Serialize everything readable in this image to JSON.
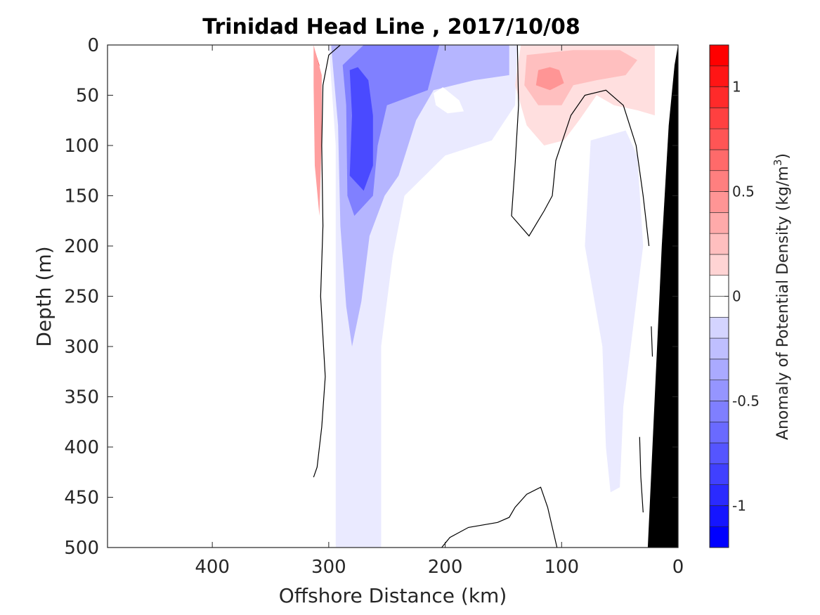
{
  "chart_data": {
    "type": "heatmap",
    "title": "Trinidad Head Line , 2017/10/08",
    "xlabel": "Offshore Distance (km)",
    "ylabel": "Depth (m)",
    "colorbar_label": "Anomaly of Potential Density (kg/m",
    "colorbar_label_superscript": "3",
    "colorbar_label_suffix": ")",
    "x_direction": "reversed",
    "y_direction": "reversed",
    "xlim": [
      0,
      490
    ],
    "ylim": [
      0,
      500
    ],
    "clim": [
      -1.2,
      1.2
    ],
    "contour_levels": [
      -1.2,
      -1.1,
      -1.0,
      -0.9,
      -0.8,
      -0.7,
      -0.6,
      -0.5,
      -0.4,
      -0.3,
      -0.2,
      -0.1,
      0,
      0.1,
      0.2,
      0.3,
      0.4,
      0.5,
      0.6,
      0.7,
      0.8,
      0.9,
      1.0,
      1.1,
      1.2
    ],
    "x_ticks": [
      {
        "value": 400,
        "label": "400"
      },
      {
        "value": 300,
        "label": "300"
      },
      {
        "value": 200,
        "label": "200"
      },
      {
        "value": 100,
        "label": "100"
      },
      {
        "value": 0,
        "label": "0"
      }
    ],
    "y_ticks": [
      {
        "value": 0,
        "label": "0"
      },
      {
        "value": 50,
        "label": "50"
      },
      {
        "value": 100,
        "label": "100"
      },
      {
        "value": 150,
        "label": "150"
      },
      {
        "value": 200,
        "label": "200"
      },
      {
        "value": 250,
        "label": "250"
      },
      {
        "value": 300,
        "label": "300"
      },
      {
        "value": 350,
        "label": "350"
      },
      {
        "value": 400,
        "label": "400"
      },
      {
        "value": 450,
        "label": "450"
      },
      {
        "value": 500,
        "label": "500"
      }
    ],
    "colorbar_ticks": [
      {
        "value": 1,
        "label": "1"
      },
      {
        "value": 0.5,
        "label": "0.5"
      },
      {
        "value": 0,
        "label": "0"
      },
      {
        "value": -0.5,
        "label": "-0.5"
      },
      {
        "value": -1,
        "label": "-1"
      }
    ],
    "colors": {
      "negative_max": "#0000ff",
      "positive_max": "#ff0000",
      "zero": "#ffffff",
      "bathymetry": "#000000",
      "zero_contour": "#000000"
    },
    "features": [
      {
        "name": "red-core-west",
        "level": 1.0,
        "points": [
          [
            312,
            5
          ],
          [
            308,
            20
          ],
          [
            308,
            45
          ],
          [
            310,
            60
          ],
          [
            312,
            35
          ]
        ]
      },
      {
        "name": "red-band-west",
        "level": 0.45,
        "points": [
          [
            313,
            0
          ],
          [
            306,
            30
          ],
          [
            306,
            90
          ],
          [
            308,
            170
          ],
          [
            312,
            120
          ],
          [
            313,
            40
          ]
        ]
      },
      {
        "name": "blue-outer",
        "level": -0.1,
        "points": [
          [
            300,
            0
          ],
          [
            294,
            100
          ],
          [
            294,
            300
          ],
          [
            294,
            500
          ],
          [
            255,
            500
          ],
          [
            255,
            300
          ],
          [
            245,
            210
          ],
          [
            235,
            150
          ],
          [
            200,
            110
          ],
          [
            160,
            95
          ],
          [
            140,
            60
          ],
          [
            138,
            0
          ]
        ]
      },
      {
        "name": "blue-mid",
        "level": -0.35,
        "points": [
          [
            298,
            0
          ],
          [
            292,
            80
          ],
          [
            290,
            180
          ],
          [
            285,
            260
          ],
          [
            280,
            300
          ],
          [
            272,
            255
          ],
          [
            265,
            190
          ],
          [
            252,
            150
          ],
          [
            240,
            130
          ],
          [
            225,
            75
          ],
          [
            210,
            45
          ],
          [
            175,
            35
          ],
          [
            145,
            30
          ],
          [
            145,
            0
          ]
        ]
      },
      {
        "name": "blue-inner",
        "level": -0.6,
        "points": [
          [
            288,
            20
          ],
          [
            285,
            60
          ],
          [
            284,
            150
          ],
          [
            278,
            170
          ],
          [
            262,
            150
          ],
          [
            258,
            100
          ],
          [
            250,
            60
          ],
          [
            215,
            45
          ],
          [
            205,
            0
          ],
          [
            270,
            0
          ]
        ]
      },
      {
        "name": "blue-core",
        "level": -0.85,
        "points": [
          [
            282,
            25
          ],
          [
            280,
            70
          ],
          [
            282,
            130
          ],
          [
            270,
            145
          ],
          [
            262,
            120
          ],
          [
            262,
            70
          ],
          [
            266,
            35
          ],
          [
            275,
            22
          ]
        ]
      },
      {
        "name": "white-gap",
        "level": 0,
        "points": [
          [
            202,
            42
          ],
          [
            188,
            55
          ],
          [
            184,
            66
          ],
          [
            198,
            68
          ],
          [
            208,
            60
          ],
          [
            210,
            48
          ]
        ]
      },
      {
        "name": "blue-nearshore",
        "level": -0.1,
        "points": [
          [
            60,
            90
          ],
          [
            75,
            95
          ],
          [
            80,
            200
          ],
          [
            65,
            300
          ],
          [
            62,
            400
          ],
          [
            58,
            445
          ],
          [
            50,
            440
          ],
          [
            47,
            360
          ],
          [
            30,
            200
          ],
          [
            35,
            110
          ],
          [
            45,
            85
          ]
        ]
      },
      {
        "name": "red-outer-east",
        "level": 0.15,
        "points": [
          [
            135,
            0
          ],
          [
            140,
            40
          ],
          [
            130,
            80
          ],
          [
            115,
            100
          ],
          [
            98,
            95
          ],
          [
            85,
            75
          ],
          [
            70,
            50
          ],
          [
            55,
            60
          ],
          [
            35,
            65
          ],
          [
            20,
            70
          ],
          [
            20,
            0
          ]
        ]
      },
      {
        "name": "red-mid-east",
        "level": 0.3,
        "points": [
          [
            130,
            10
          ],
          [
            132,
            40
          ],
          [
            120,
            60
          ],
          [
            100,
            60
          ],
          [
            90,
            40
          ],
          [
            70,
            35
          ],
          [
            45,
            30
          ],
          [
            35,
            15
          ],
          [
            50,
            5
          ],
          [
            90,
            5
          ]
        ]
      },
      {
        "name": "red-core-east",
        "level": 0.5,
        "points": [
          [
            120,
            25
          ],
          [
            122,
            40
          ],
          [
            110,
            45
          ],
          [
            98,
            38
          ],
          [
            102,
            25
          ],
          [
            110,
            22
          ]
        ]
      }
    ],
    "zero_contours": [
      {
        "name": "zero-contour-west",
        "points": [
          [
            290,
            0
          ],
          [
            300,
            10
          ],
          [
            305,
            40
          ],
          [
            306,
            100
          ],
          [
            305,
            180
          ],
          [
            307,
            250
          ],
          [
            303,
            330
          ],
          [
            306,
            380
          ],
          [
            310,
            420
          ],
          [
            313,
            430
          ]
        ]
      },
      {
        "name": "zero-contour-mid",
        "points": [
          [
            138,
            0
          ],
          [
            137,
            60
          ],
          [
            140,
            120
          ],
          [
            143,
            170
          ],
          [
            128,
            190
          ],
          [
            115,
            165
          ],
          [
            108,
            150
          ],
          [
            105,
            115
          ],
          [
            92,
            70
          ],
          [
            80,
            50
          ],
          [
            62,
            45
          ],
          [
            47,
            60
          ],
          [
            36,
            100
          ],
          [
            30,
            150
          ],
          [
            25,
            200
          ]
        ]
      },
      {
        "name": "zero-contour-deep",
        "points": [
          [
            203,
            500
          ],
          [
            196,
            490
          ],
          [
            180,
            480
          ],
          [
            155,
            475
          ],
          [
            145,
            470
          ],
          [
            140,
            460
          ],
          [
            130,
            447
          ],
          [
            118,
            440
          ],
          [
            112,
            460
          ],
          [
            104,
            500
          ]
        ]
      },
      {
        "name": "zero-contour-shelf",
        "points": [
          [
            23,
            280
          ],
          [
            22,
            310
          ]
        ]
      },
      {
        "name": "zero-contour-slope",
        "points": [
          [
            33,
            390
          ],
          [
            32,
            430
          ],
          [
            30,
            465
          ]
        ]
      }
    ],
    "bathymetry": [
      [
        0,
        0
      ],
      [
        0,
        500
      ],
      [
        26,
        500
      ],
      [
        14,
        200
      ],
      [
        8,
        80
      ],
      [
        3,
        20
      ]
    ]
  }
}
